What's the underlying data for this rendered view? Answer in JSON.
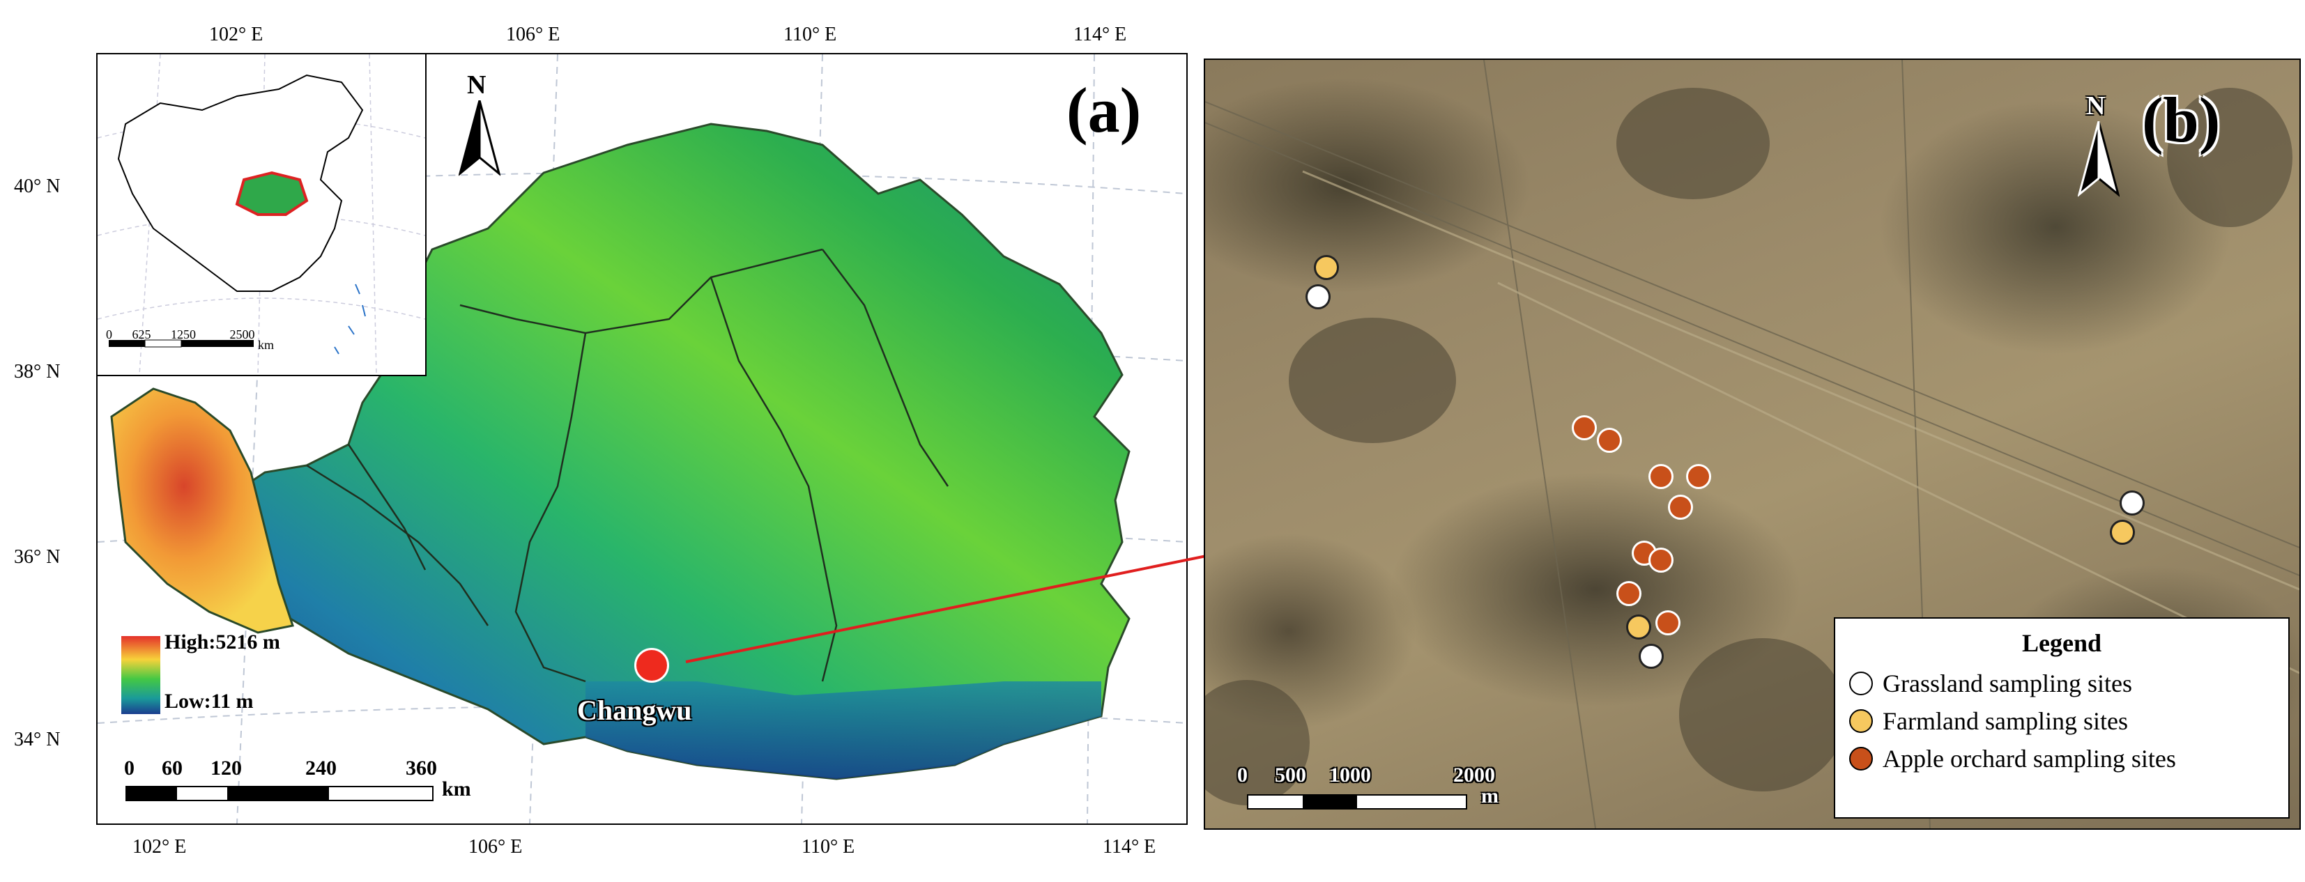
{
  "figure": {
    "top_lon_ticks": [
      "102° E",
      "106° E",
      "110° E",
      "114° E"
    ],
    "bottom_lon_ticks": [
      "102° E",
      "106° E",
      "110° E",
      "114° E"
    ],
    "lat_ticks": [
      "40° N",
      "38° N",
      "36° N",
      "34° N"
    ]
  },
  "panel_a": {
    "label": "(a)",
    "north_label": "N",
    "legend": {
      "high": "High:5216 m",
      "low": "Low:11 m",
      "high_color": "#e4302a",
      "low_color": "#1b3d8f"
    },
    "scale": {
      "ticks": [
        "0",
        "60",
        "120",
        "240",
        "360"
      ],
      "unit": "km"
    },
    "site_label": "Changwu",
    "site_color": "#ee2a1e",
    "inset": {
      "scale_ticks": [
        "0",
        "625",
        "1250",
        "2500"
      ],
      "scale_unit": "km"
    }
  },
  "panel_b": {
    "label": "(b)",
    "north_label": "N",
    "scale": {
      "ticks": [
        "0",
        "500",
        "1000",
        "2000"
      ],
      "unit": "m"
    },
    "legend": {
      "title": "Legend",
      "items": [
        {
          "label": "Grassland sampling sites",
          "color": "#ffffff"
        },
        {
          "label": "Farmland sampling sites",
          "color": "#f6c85f"
        },
        {
          "label": "Apple orchard sampling sites",
          "color": "#c8501a"
        }
      ]
    }
  }
}
